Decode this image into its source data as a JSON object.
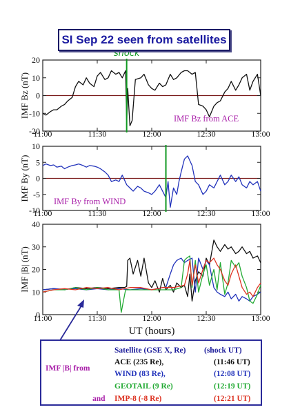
{
  "title": "SI Sep 22 seen from satellites",
  "shock_label": "shock",
  "xaxis": {
    "ticks": [
      "11:00",
      "11:30",
      "12:00",
      "12:30",
      "13:00"
    ],
    "tick_values": [
      11.0,
      11.5,
      12.0,
      12.5,
      13.0
    ],
    "label": "UT (hours)"
  },
  "colors": {
    "ace": "#111111",
    "wind": "#2233bb",
    "geotail": "#22aa33",
    "imp8": "#dd3322",
    "zero_line": "#7a1a1a",
    "shock_line": "#119922",
    "label_purple": "#aa22aa"
  },
  "legend": {
    "header_satellite": "Satellite (GSE X, Re)",
    "header_shock": "(shock UT)",
    "prefix": "IMF |B| from",
    "and": "and",
    "rows": [
      {
        "name": "ACE (235 Re),",
        "time": "(11:46 UT)",
        "color": "#111111"
      },
      {
        "name": "WIND (83 Re),",
        "time": "(12:08 UT)",
        "color": "#2233bb"
      },
      {
        "name": "GEOTAIL (9 Re)",
        "time": "(12:19 UT)",
        "color": "#22aa33"
      },
      {
        "name": "IMP-8 (-8 Re)",
        "time": "(12:21 UT)",
        "color": "#dd3322"
      }
    ]
  },
  "chart_data": [
    {
      "type": "line",
      "ylabel": "IMF Bz (nT)",
      "annotation": "IMF Bz from ACE",
      "xlim": [
        11.0,
        13.0
      ],
      "ylim": [
        -20,
        20
      ],
      "yticks": [
        -20,
        -10,
        0,
        10,
        20
      ],
      "zero_line": true,
      "shock_x": 11.77,
      "series": [
        {
          "key": "ace",
          "x": [
            11.0,
            11.03,
            11.07,
            11.1,
            11.13,
            11.17,
            11.2,
            11.23,
            11.27,
            11.3,
            11.33,
            11.37,
            11.4,
            11.43,
            11.47,
            11.5,
            11.53,
            11.57,
            11.6,
            11.63,
            11.67,
            11.7,
            11.73,
            11.76,
            11.77,
            11.78,
            11.8,
            11.82,
            11.85,
            11.9,
            11.93,
            11.97,
            12.0,
            12.03,
            12.07,
            12.1,
            12.13,
            12.17,
            12.2,
            12.23,
            12.27,
            12.3,
            12.33,
            12.37,
            12.4,
            12.43,
            12.47,
            12.5,
            12.53,
            12.57,
            12.6,
            12.63,
            12.67,
            12.7,
            12.73,
            12.77,
            12.8,
            12.83,
            12.87,
            12.9,
            12.93,
            12.97,
            13.0
          ],
          "y": [
            -10,
            -11,
            -9,
            -8,
            -8,
            -6,
            -5,
            -3,
            -1,
            5,
            8,
            6,
            10,
            7,
            5,
            11,
            13,
            9,
            10,
            14,
            12,
            13,
            10,
            14,
            -15,
            4,
            -17,
            -14,
            9,
            10,
            12,
            6,
            4,
            3,
            7,
            5,
            6,
            12,
            9,
            10,
            13,
            14,
            14,
            12,
            13,
            -5,
            -6,
            -8,
            -12,
            -6,
            -4,
            -3,
            2,
            4,
            8,
            3,
            6,
            10,
            12,
            3,
            8,
            12,
            0
          ]
        }
      ]
    },
    {
      "type": "line",
      "ylabel": "IMF By (nT)",
      "annotation": "IMF By from WIND",
      "xlim": [
        11.0,
        13.0
      ],
      "ylim": [
        -10,
        10
      ],
      "yticks": [
        -10,
        -5,
        0,
        5,
        10
      ],
      "zero_line": true,
      "shock_x": 12.13,
      "series": [
        {
          "key": "wind",
          "x": [
            11.0,
            11.03,
            11.07,
            11.1,
            11.13,
            11.17,
            11.2,
            11.23,
            11.27,
            11.3,
            11.33,
            11.37,
            11.4,
            11.43,
            11.47,
            11.5,
            11.53,
            11.57,
            11.6,
            11.63,
            11.67,
            11.7,
            11.73,
            11.77,
            11.8,
            11.83,
            11.87,
            11.9,
            11.93,
            11.97,
            12.0,
            12.03,
            12.07,
            12.1,
            12.13,
            12.15,
            12.17,
            12.2,
            12.23,
            12.25,
            12.27,
            12.3,
            12.33,
            12.37,
            12.4,
            12.43,
            12.47,
            12.5,
            12.53,
            12.57,
            12.6,
            12.63,
            12.67,
            12.7,
            12.73,
            12.77,
            12.8,
            12.83,
            12.87,
            12.9,
            12.93,
            12.97,
            13.0
          ],
          "y": [
            4,
            4.5,
            4,
            4.2,
            3.5,
            3.8,
            3,
            3.5,
            4,
            4.2,
            4.5,
            4,
            3.5,
            4,
            3.8,
            3.5,
            3,
            2,
            1,
            -1,
            -0.5,
            -1,
            1,
            -2,
            -3,
            -4,
            -2.5,
            -3,
            -4,
            -4.5,
            -5,
            -4,
            -2,
            -4,
            -6,
            -1,
            -9,
            -3,
            -5,
            -1,
            2,
            6,
            7,
            4,
            -1,
            -2,
            -5,
            -4,
            -2,
            -3,
            -1,
            1,
            -2,
            -1,
            1,
            -1,
            0.5,
            -2,
            -3,
            -1,
            -2,
            -1,
            -4
          ]
        }
      ]
    },
    {
      "type": "line",
      "ylabel": "IMF |B| (nT)",
      "xlim": [
        11.0,
        13.0
      ],
      "ylim": [
        0,
        40
      ],
      "yticks": [
        0,
        10,
        20,
        30,
        40
      ],
      "zero_line": false,
      "series": [
        {
          "key": "ace",
          "x": [
            11.0,
            11.1,
            11.2,
            11.3,
            11.4,
            11.5,
            11.6,
            11.7,
            11.75,
            11.77,
            11.78,
            11.8,
            11.83,
            11.87,
            11.9,
            11.93,
            11.97,
            12.0,
            12.03,
            12.07,
            12.1,
            12.13,
            12.17,
            12.2,
            12.23,
            12.27,
            12.3,
            12.33,
            12.35,
            12.37,
            12.4,
            12.43,
            12.47,
            12.5,
            12.53,
            12.57,
            12.6,
            12.63,
            12.67,
            12.7,
            12.73,
            12.77,
            12.8,
            12.83,
            12.87,
            12.9,
            12.93,
            12.97,
            13.0
          ],
          "y": [
            11,
            11.5,
            11,
            12,
            11.5,
            12,
            11.5,
            12,
            12,
            12.5,
            24,
            25,
            18,
            24,
            17,
            25,
            14,
            12,
            15,
            10,
            16,
            11,
            13,
            10,
            14,
            12,
            13,
            8,
            18,
            6,
            15,
            19,
            17,
            25,
            22,
            33,
            30,
            28,
            31,
            29,
            30,
            27,
            28,
            30,
            27,
            28,
            25,
            26,
            23
          ]
        },
        {
          "key": "wind",
          "x": [
            11.0,
            11.1,
            11.2,
            11.3,
            11.4,
            11.5,
            11.6,
            11.7,
            11.8,
            11.9,
            12.0,
            12.05,
            12.1,
            12.13,
            12.17,
            12.2,
            12.23,
            12.27,
            12.3,
            12.33,
            12.37,
            12.4,
            12.43,
            12.47,
            12.5,
            12.53,
            12.57,
            12.6,
            12.63,
            12.67,
            12.7,
            12.73,
            12.77,
            12.8,
            12.83,
            12.87,
            12.9,
            12.93,
            12.97,
            13.0
          ],
          "y": [
            11,
            11.5,
            11.2,
            11.5,
            11,
            11.5,
            11,
            11.5,
            11,
            11.5,
            11,
            11.5,
            12,
            12,
            18,
            22,
            24,
            25,
            23,
            24,
            25,
            10,
            25,
            20,
            24,
            22,
            12,
            10,
            9,
            8,
            10,
            7,
            9,
            6,
            8,
            7,
            6,
            8,
            9,
            10
          ]
        },
        {
          "key": "geotail",
          "x": [
            11.0,
            11.1,
            11.2,
            11.3,
            11.4,
            11.5,
            11.6,
            11.7,
            11.72,
            11.74,
            11.76,
            11.8,
            11.9,
            12.0,
            12.1,
            12.2,
            12.27,
            12.3,
            12.32,
            12.35,
            12.37,
            12.4,
            12.43,
            12.47,
            12.5,
            12.53,
            12.57,
            12.6,
            12.63,
            12.67,
            12.7,
            12.73,
            12.77,
            12.8,
            12.83,
            12.87,
            12.9,
            12.93,
            12.97,
            13.0
          ],
          "y": [
            10,
            11,
            11,
            12,
            11,
            12,
            11,
            11,
            1,
            6,
            11,
            11,
            11,
            11,
            11,
            11,
            12,
            24,
            25,
            26,
            12,
            24,
            10,
            18,
            22,
            13,
            20,
            11,
            23,
            9,
            14,
            24,
            21,
            23,
            17,
            12,
            6,
            5,
            9,
            13
          ]
        },
        {
          "key": "imp8",
          "x": [
            11.0,
            11.1,
            11.2,
            11.3,
            11.4,
            11.5,
            11.6,
            11.7,
            11.8,
            11.9,
            12.0,
            12.1,
            12.2,
            12.25,
            12.3,
            12.33,
            12.35,
            12.37,
            12.4,
            12.43,
            12.47,
            12.5,
            12.53,
            12.57,
            12.6,
            12.63,
            12.67,
            12.7,
            12.73,
            12.77,
            12.8,
            12.83,
            12.87,
            12.9,
            12.93,
            12.97,
            13.0
          ],
          "y": [
            10,
            11,
            11.5,
            11,
            12,
            11.5,
            12,
            11,
            12,
            12,
            11,
            12,
            12,
            12.5,
            13,
            18,
            24,
            13,
            22,
            14,
            20,
            24,
            23,
            25,
            22,
            20,
            15,
            13,
            18,
            22,
            17,
            12,
            9,
            10,
            8,
            12,
            14
          ]
        }
      ]
    }
  ]
}
